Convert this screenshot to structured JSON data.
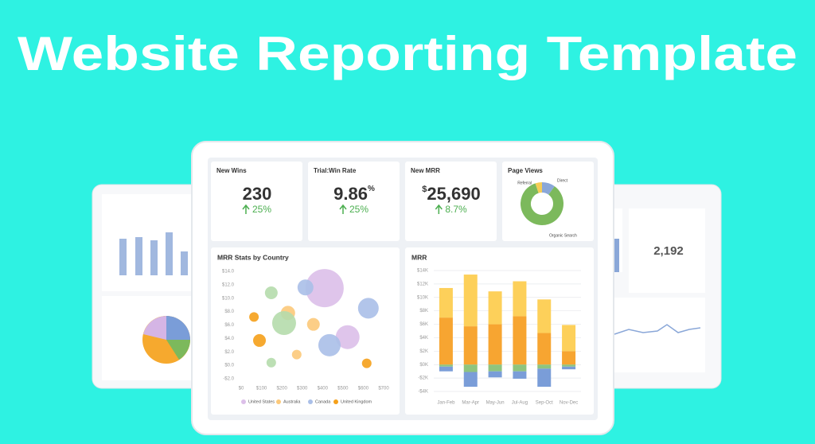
{
  "title": "Website Reporting Template",
  "kpis": [
    {
      "label": "New Wins",
      "value": "230",
      "change": "25%"
    },
    {
      "label": "Trial:Win Rate",
      "value": "9.86",
      "suffix": "%",
      "change": "25%"
    },
    {
      "label": "New MRR",
      "prefix": "$",
      "value": "25,690",
      "change": "8.7%"
    }
  ],
  "side_value": "2,192",
  "chart_data": [
    {
      "type": "pie",
      "title": "Page Views",
      "categories": [
        "Direct",
        "Organic Search",
        "Referral"
      ],
      "values": [
        10,
        85,
        5
      ],
      "colors": [
        "#8aa7d8",
        "#7cb95c",
        "#f6cd55"
      ],
      "donut": true
    },
    {
      "type": "scatter",
      "title": "MRR Stats by Country",
      "xlim": [
        0,
        700
      ],
      "xticks": [
        {
          "value": 0,
          "label": "$0"
        },
        {
          "value": 100,
          "label": "$100"
        },
        {
          "value": 200,
          "label": "$200"
        },
        {
          "value": 300,
          "label": "$300"
        },
        {
          "value": 400,
          "label": "$400"
        },
        {
          "value": 500,
          "label": "$500"
        },
        {
          "value": 600,
          "label": "$600"
        },
        {
          "value": 700,
          "label": "$700"
        }
      ],
      "ylim": [
        -2,
        14
      ],
      "yticks": [
        {
          "value": -2,
          "label": "-$2.0"
        },
        {
          "value": 0,
          "label": "$0.0"
        },
        {
          "value": 2,
          "label": "$2.0"
        },
        {
          "value": 4,
          "label": "$4.0"
        },
        {
          "value": 6,
          "label": "$6.0"
        },
        {
          "value": 8,
          "label": "$8.0"
        },
        {
          "value": 10,
          "label": "$10.0"
        },
        {
          "value": 12,
          "label": "$12.0"
        },
        {
          "value": 14,
          "label": "$14.0"
        }
      ],
      "series": [
        {
          "name": "United States",
          "color": "#dcbfe9",
          "x": [
            410,
            523
          ],
          "y": [
            11.5,
            4.2
          ],
          "sizes": [
            576,
            225
          ]
        },
        {
          "name": "Australia",
          "color": "#fcc97a",
          "x": [
            230,
            355,
            273
          ],
          "y": [
            7.8,
            6.1,
            1.6
          ],
          "sizes": [
            81,
            64,
            36
          ]
        },
        {
          "name": "Canada",
          "color": "#aabfe8",
          "x": [
            316,
            625,
            434
          ],
          "y": [
            11.6,
            8.5,
            3.0
          ],
          "sizes": [
            100,
            169,
            196
          ]
        },
        {
          "name": "United Kingdom",
          "color": "#f5a01a",
          "x": [
            63,
            90,
            617
          ],
          "y": [
            7.2,
            3.7,
            0.3
          ],
          "sizes": [
            36,
            64,
            36
          ]
        },
        {
          "color": "#b5dcac",
          "x": [
            148,
            211,
            148
          ],
          "y": [
            10.8,
            6.3,
            0.4
          ],
          "sizes": [
            64,
            225,
            36
          ]
        }
      ]
    },
    {
      "type": "bar",
      "title": "MRR",
      "stacked": true,
      "categories": [
        "Jan-Feb",
        "Mar-Apr",
        "May-Jun",
        "Jul-Aug",
        "Sep-Oct",
        "Nov-Dec"
      ],
      "ylim": [
        -4,
        14
      ],
      "yticks": [
        {
          "value": -4,
          "label": "-$4K"
        },
        {
          "value": -2,
          "label": "-$2K"
        },
        {
          "value": 0,
          "label": "$0K"
        },
        {
          "value": 2,
          "label": "$2K"
        },
        {
          "value": 4,
          "label": "$4K"
        },
        {
          "value": 6,
          "label": "$6K"
        },
        {
          "value": 8,
          "label": "$8K"
        },
        {
          "value": 10,
          "label": "$10K"
        },
        {
          "value": 12,
          "label": "$12K"
        },
        {
          "value": 14,
          "label": "$14K"
        }
      ],
      "grid": true,
      "series": [
        {
          "color": "#f7a531",
          "values": [
            7.0,
            5.7,
            6.0,
            7.2,
            4.7,
            2.0
          ]
        },
        {
          "color": "#fdd05a",
          "values": [
            4.4,
            7.7,
            4.9,
            5.2,
            5.0,
            3.9
          ]
        },
        {
          "color": "#8fc47e",
          "values": [
            -0.3,
            -1.1,
            -1.0,
            -1.0,
            -0.6,
            -0.3
          ]
        },
        {
          "color": "#7a9dd8",
          "values": [
            -0.7,
            -2.2,
            -0.9,
            -1.1,
            -2.7,
            -0.4
          ]
        }
      ]
    }
  ]
}
